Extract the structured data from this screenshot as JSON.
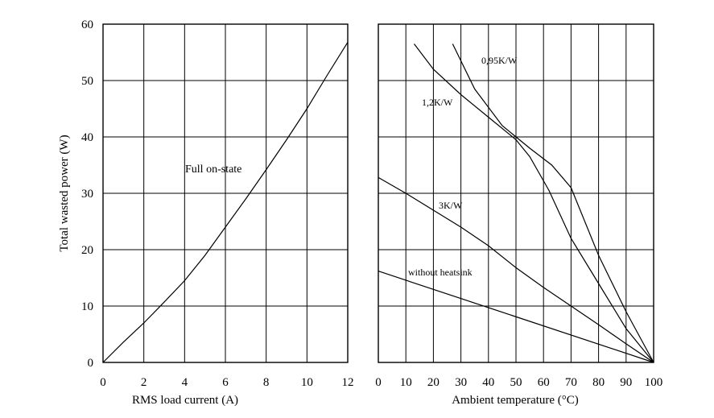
{
  "chart_data": [
    {
      "type": "line",
      "xlabel": "RMS load current (A)",
      "ylabel": "Total wasted power (W)",
      "xlim": [
        0,
        12
      ],
      "ylim": [
        0,
        60
      ],
      "x_ticks": [
        "0",
        "2",
        "4",
        "6",
        "8",
        "10",
        "12"
      ],
      "y_ticks": [
        "0",
        "10",
        "20",
        "30",
        "40",
        "50",
        "60"
      ],
      "grid": true,
      "series": [
        {
          "name": "Full on-state",
          "x": [
            0,
            1,
            2,
            3,
            4,
            5,
            6,
            7,
            8,
            9,
            10,
            11,
            12
          ],
          "y": [
            0,
            3.6,
            7,
            10.7,
            14.5,
            19,
            24,
            29,
            34.2,
            39.5,
            45,
            51,
            56.8
          ]
        }
      ]
    },
    {
      "type": "line",
      "xlabel": "Ambient temperature (°C)",
      "xlim": [
        0,
        100
      ],
      "ylim": [
        0,
        60
      ],
      "x_ticks": [
        "0",
        "10",
        "20",
        "30",
        "40",
        "50",
        "60",
        "70",
        "80",
        "90",
        "100"
      ],
      "grid": true,
      "series": [
        {
          "name": "0,95K/W",
          "x": [
            27,
            35,
            45,
            55,
            63,
            70,
            80,
            90,
            100
          ],
          "y": [
            56.5,
            48.5,
            42,
            38,
            35,
            31,
            19,
            9,
            0
          ]
        },
        {
          "name": "1,2K/W",
          "x": [
            13,
            20,
            30,
            40,
            50,
            55,
            62,
            70,
            80,
            90,
            100
          ],
          "y": [
            56.5,
            52,
            47.5,
            43.5,
            39.5,
            36.5,
            30.5,
            22,
            14,
            6,
            0
          ]
        },
        {
          "name": "3K/W",
          "x": [
            0,
            10,
            20,
            30,
            40,
            50,
            60,
            70,
            80,
            90,
            100
          ],
          "y": [
            32.8,
            30,
            27,
            24,
            20.7,
            16.8,
            13.3,
            10,
            6.7,
            3.3,
            0
          ]
        },
        {
          "name": "without heatsink",
          "x": [
            0,
            100
          ],
          "y": [
            16.2,
            0
          ]
        }
      ]
    }
  ]
}
